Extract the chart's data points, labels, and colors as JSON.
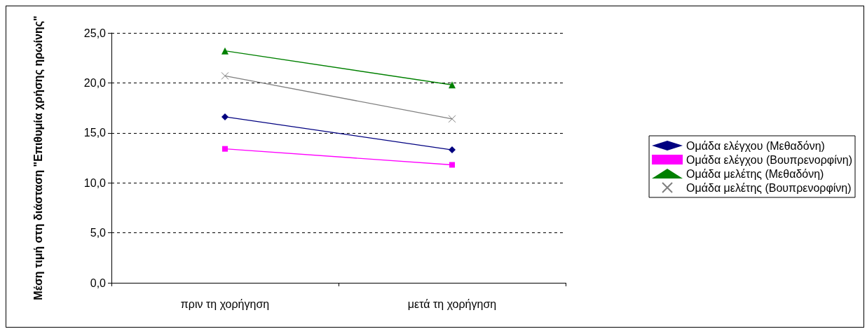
{
  "chart_data": {
    "type": "line",
    "ylabel": "Μέση τιμή στη διάσταση \"Επιθυμία χρήσης ηρωίνης\"",
    "categories": [
      "πριν τη χορήγηση",
      "μετά τη χορήγηση"
    ],
    "series": [
      {
        "name": "Ομάδα ελέγχου (Μεθαδόνη)",
        "color": "#000080",
        "marker": "diamond",
        "values": [
          16.6,
          13.3
        ]
      },
      {
        "name": "Ομάδα ελέγχου (Βουπρενορφίνη)",
        "color": "#ff00ff",
        "marker": "square",
        "values": [
          13.4,
          11.8
        ]
      },
      {
        "name": "Ομάδα μελέτης (Μεθαδόνη)",
        "color": "#008000",
        "marker": "triangle",
        "values": [
          23.2,
          19.8
        ]
      },
      {
        "name": "Ομάδα μελέτης (Βουπρενορφίνη)",
        "color": "#808080",
        "marker": "cross",
        "values": [
          20.7,
          16.4
        ]
      }
    ],
    "ylim": [
      0,
      25
    ],
    "yticks": [
      {
        "value": 0,
        "label": "0,0"
      },
      {
        "value": 5,
        "label": "5,0"
      },
      {
        "value": 10,
        "label": "10,0"
      },
      {
        "value": 15,
        "label": "15,0"
      },
      {
        "value": 20,
        "label": "20,0"
      },
      {
        "value": 25,
        "label": "25,0"
      }
    ],
    "grid": "y",
    "legend": "right",
    "line_style": "solid"
  }
}
